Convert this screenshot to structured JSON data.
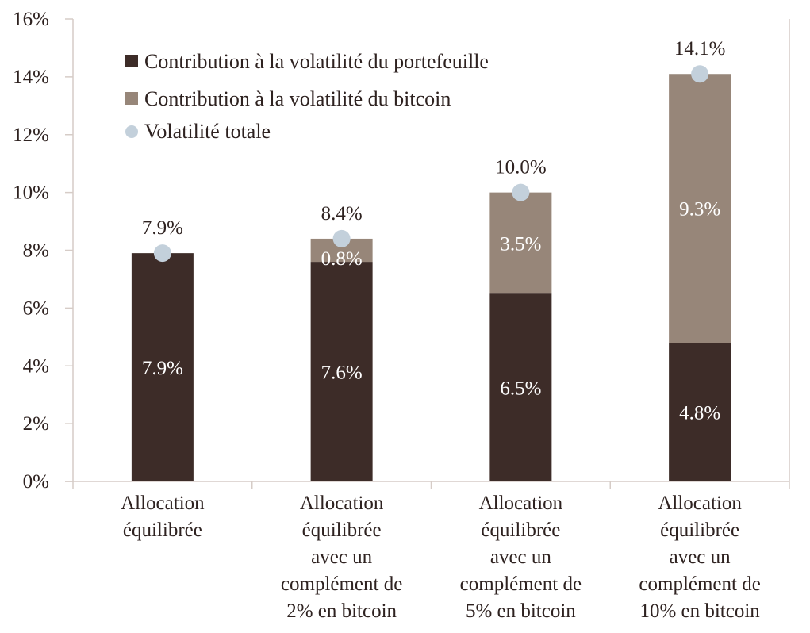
{
  "chart_data": {
    "type": "bar",
    "stacked": true,
    "title": "",
    "xlabel": "",
    "ylabel": "",
    "ylim": [
      0,
      16
    ],
    "yticks": [
      "0%",
      "2%",
      "4%",
      "6%",
      "8%",
      "10%",
      "12%",
      "14%",
      "16%"
    ],
    "ytick_values": [
      0,
      2,
      4,
      6,
      8,
      10,
      12,
      14,
      16
    ],
    "grid": false,
    "legend_position": "top-left",
    "categories": [
      [
        "Allocation",
        "équilibrée"
      ],
      [
        "Allocation",
        "équilibrée",
        "avec un",
        "complément de",
        "2% en bitcoin"
      ],
      [
        "Allocation",
        "équilibrée",
        "avec un",
        "complément de",
        "5% en bitcoin"
      ],
      [
        "Allocation",
        "équilibrée",
        "avec un",
        "complément de",
        "10% en bitcoin"
      ]
    ],
    "series": [
      {
        "name": "Contribution à la volatilité du portefeuille",
        "type": "bar",
        "color": "#3d2c28",
        "values": [
          7.9,
          7.6,
          6.5,
          4.8
        ],
        "labels": [
          "7.9%",
          "7.6%",
          "6.5%",
          "4.8%"
        ]
      },
      {
        "name": "Contribution à la volatilité du bitcoin",
        "type": "bar",
        "color": "#978679",
        "values": [
          0,
          0.8,
          3.5,
          9.3
        ],
        "labels": [
          "",
          "0.8%",
          "3.5%",
          "9.3%"
        ]
      },
      {
        "name": "Volatilité totale",
        "type": "scatter",
        "color": "#c3d0db",
        "values": [
          7.9,
          8.4,
          10.0,
          14.1
        ],
        "labels": [
          "7.9%",
          "8.4%",
          "10.0%",
          "14.1%"
        ]
      }
    ],
    "axis_color": "#d6ccc7"
  }
}
